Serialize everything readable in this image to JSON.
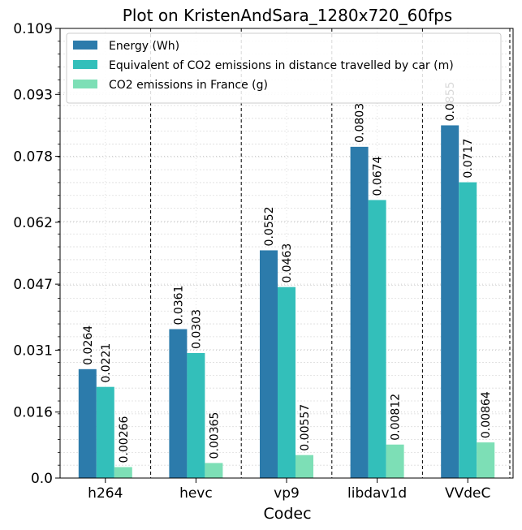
{
  "chart_data": {
    "type": "bar",
    "title": "Plot on KristenAndSara_1280x720_60fps",
    "xlabel": "Codec",
    "ylabel": "",
    "categories": [
      "h264",
      "hevc",
      "vp9",
      "libdav1d",
      "VVdeC"
    ],
    "series": [
      {
        "name": "Energy (Wh)",
        "color": "#2c7bab",
        "values": [
          0.0264,
          0.0361,
          0.0552,
          0.0803,
          0.0855
        ],
        "labels": [
          "0.0264",
          "0.0361",
          "0.0552",
          "0.0803",
          "0.0855"
        ]
      },
      {
        "name": "Equivalent of CO2 emissions in distance travelled by car (m)",
        "color": "#33bfba",
        "values": [
          0.0221,
          0.0303,
          0.0463,
          0.0674,
          0.0717
        ],
        "labels": [
          "0.0221",
          "0.0303",
          "0.0463",
          "0.0674",
          "0.0717"
        ]
      },
      {
        "name": "CO2 emissions in France (g)",
        "color": "#7ddfb6",
        "values": [
          0.00266,
          0.00365,
          0.00557,
          0.00812,
          0.00864
        ],
        "labels": [
          "0.00266",
          "0.00365",
          "0.00557",
          "0.00812",
          "0.00864"
        ]
      }
    ],
    "ylim": [
      0,
      0.109
    ],
    "yticks": [
      0.0,
      0.016,
      0.031,
      0.047,
      0.062,
      0.078,
      0.093,
      0.109
    ],
    "ytick_labels": [
      "0.0",
      "0.016",
      "0.031",
      "0.047",
      "0.062",
      "0.078",
      "0.093",
      "0.109"
    ],
    "grid": true,
    "legend_position": "top-left"
  }
}
